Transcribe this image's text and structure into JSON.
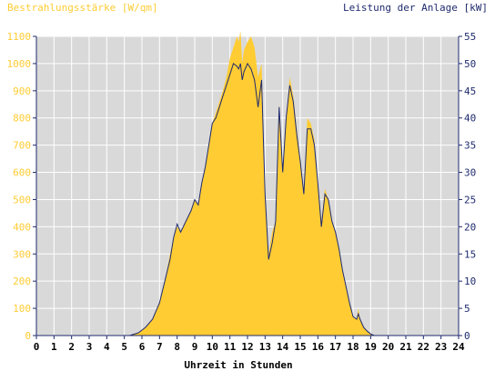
{
  "chart_data": {
    "type": "area",
    "left_title": "Bestrahlungsstärke [W/qm]",
    "right_title": "Leistung der Anlage [kW]",
    "xlabel": "Uhrzeit in Stunden",
    "x_ticks": [
      "0",
      "1",
      "2",
      "3",
      "4",
      "5",
      "6",
      "7",
      "8",
      "9",
      "10",
      "11",
      "12",
      "13",
      "14",
      "15",
      "16",
      "17",
      "18",
      "19",
      "20",
      "21",
      "22",
      "23",
      "24"
    ],
    "xlim": [
      0,
      24
    ],
    "y_left_ticks": [
      "0",
      "100",
      "200",
      "300",
      "400",
      "500",
      "600",
      "700",
      "800",
      "900",
      "1000",
      "1100"
    ],
    "ylim_left": [
      0,
      1100
    ],
    "y_right_ticks": [
      "0",
      "5",
      "10",
      "15",
      "20",
      "25",
      "30",
      "35",
      "40",
      "45",
      "50",
      "55"
    ],
    "ylim_right": [
      0,
      55
    ],
    "colors": {
      "left_axis_text": "#ffcc33",
      "right_axis_text": "#1f2a6e",
      "irradiance_fill": "#ffcc33",
      "power_line": "#1f2a6e",
      "plot_background": "#d9d9d9",
      "grid": "#ffffff"
    },
    "series": [
      {
        "axis": "left",
        "render": "area",
        "x": [
          5.3,
          5.8,
          6.2,
          6.6,
          7.0,
          7.3,
          7.6,
          7.8,
          8.0,
          8.2,
          8.5,
          8.8,
          9.0,
          9.2,
          9.4,
          9.6,
          9.8,
          10.0,
          10.2,
          10.4,
          10.6,
          10.8,
          11.0,
          11.2,
          11.4,
          11.5,
          11.6,
          11.7,
          11.8,
          12.0,
          12.2,
          12.4,
          12.6,
          12.8,
          13.0,
          13.2,
          13.4,
          13.6,
          13.8,
          14.0,
          14.2,
          14.4,
          14.6,
          14.8,
          15.0,
          15.2,
          15.4,
          15.6,
          15.8,
          16.0,
          16.2,
          16.4,
          16.6,
          16.8,
          17.0,
          17.2,
          17.4,
          17.6,
          17.8,
          18.0,
          18.2,
          18.3,
          18.4,
          18.6,
          18.8,
          19.0,
          19.2
        ],
        "y": [
          0,
          10,
          30,
          60,
          120,
          200,
          300,
          360,
          400,
          380,
          420,
          460,
          500,
          480,
          560,
          620,
          700,
          780,
          820,
          860,
          900,
          950,
          1020,
          1060,
          1100,
          1080,
          1120,
          1000,
          1050,
          1080,
          1100,
          1060,
          950,
          1000,
          500,
          300,
          380,
          420,
          850,
          600,
          800,
          950,
          880,
          760,
          650,
          520,
          800,
          780,
          720,
          560,
          420,
          540,
          500,
          420,
          380,
          320,
          240,
          180,
          120,
          70,
          60,
          100,
          60,
          30,
          15,
          5,
          0
        ]
      },
      {
        "axis": "right",
        "render": "line",
        "x": [
          5.3,
          5.8,
          6.2,
          6.6,
          7.0,
          7.3,
          7.6,
          7.8,
          8.0,
          8.2,
          8.5,
          8.8,
          9.0,
          9.2,
          9.4,
          9.6,
          9.8,
          10.0,
          10.2,
          10.4,
          10.6,
          10.8,
          11.0,
          11.2,
          11.4,
          11.5,
          11.6,
          11.7,
          11.8,
          12.0,
          12.2,
          12.4,
          12.6,
          12.8,
          13.0,
          13.2,
          13.4,
          13.6,
          13.8,
          14.0,
          14.2,
          14.4,
          14.6,
          14.8,
          15.0,
          15.2,
          15.4,
          15.6,
          15.8,
          16.0,
          16.2,
          16.4,
          16.6,
          16.8,
          17.0,
          17.2,
          17.4,
          17.6,
          17.8,
          18.0,
          18.2,
          18.3,
          18.4,
          18.6,
          18.8,
          19.0,
          19.2
        ],
        "y": [
          0,
          0.5,
          1.5,
          3,
          6,
          10,
          14,
          18,
          20.5,
          19,
          21,
          23,
          25,
          24,
          28,
          31,
          35,
          39,
          40,
          42,
          44,
          46,
          48,
          50,
          49.5,
          49,
          50,
          47,
          48.5,
          50,
          49,
          47,
          42,
          47,
          26,
          14,
          17,
          21,
          42,
          30,
          40,
          46,
          43,
          37,
          32,
          26,
          38,
          38,
          35,
          28,
          20,
          26,
          25,
          21,
          19,
          16,
          12,
          9,
          6,
          3.5,
          3,
          4,
          3,
          1.5,
          0.8,
          0.3,
          0
        ]
      }
    ]
  }
}
